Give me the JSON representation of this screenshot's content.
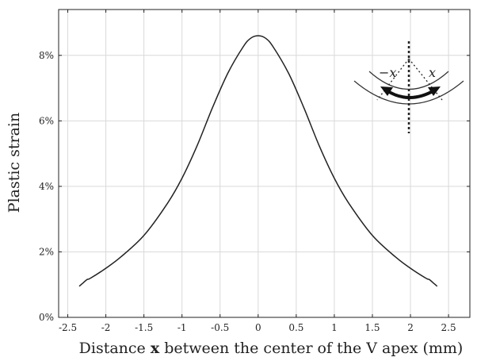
{
  "chart_data": {
    "type": "line",
    "title": "",
    "xlabel": "Distance x between the center of the V apex (mm)",
    "xlabel_parts": [
      "Distance ",
      "x",
      " between the center of the V apex (mm)"
    ],
    "ylabel": "Plastic strain",
    "xlim": [
      -2.62,
      2.78
    ],
    "ylim": [
      0,
      9.4
    ],
    "grid": true,
    "x_ticks": [
      -2.5,
      -2,
      -1.5,
      -1,
      -0.5,
      0,
      0.5,
      1,
      1.5,
      2,
      2.5
    ],
    "x_tick_labels": [
      "-2.5",
      "-2",
      "-1.5",
      "-1",
      "-0.5",
      "0",
      "0.5",
      "1",
      "1.5",
      "2",
      "2.5"
    ],
    "y_ticks": [
      0,
      2,
      4,
      6,
      8
    ],
    "y_tick_labels": [
      "0%",
      "2%",
      "4%",
      "6%",
      "8%"
    ],
    "series": [
      {
        "x": [
          -2.35,
          -2.3,
          -2.25,
          -2.2,
          -2.0,
          -1.8,
          -1.5,
          -1.2,
          -1.0,
          -0.8,
          -0.6,
          -0.4,
          -0.2,
          -0.1,
          0,
          0.1,
          0.2,
          0.4,
          0.6,
          0.8,
          1.0,
          1.2,
          1.5,
          1.8,
          2.0,
          2.2,
          2.25,
          2.3,
          2.35
        ],
        "values": [
          0.95,
          1.05,
          1.15,
          1.2,
          1.5,
          1.85,
          2.5,
          3.45,
          4.25,
          5.25,
          6.4,
          7.45,
          8.25,
          8.52,
          8.6,
          8.52,
          8.25,
          7.45,
          6.4,
          5.25,
          4.25,
          3.45,
          2.5,
          1.85,
          1.5,
          1.2,
          1.15,
          1.05,
          0.95
        ],
        "color": "#222222"
      }
    ],
    "inset": {
      "labels": [
        "−x",
        "x"
      ]
    }
  }
}
